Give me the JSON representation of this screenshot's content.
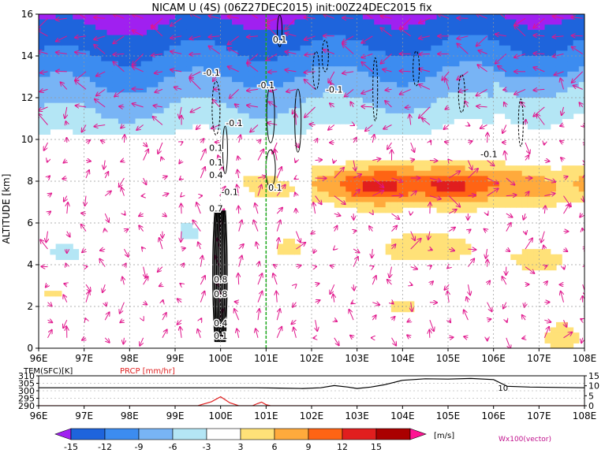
{
  "chart_data": {
    "type": "heatmap",
    "title": "NICAM U (4S) (06Z27DEC2015) init:00Z24DEC2015 fix",
    "main_panel": {
      "ylabel": "ALTITUDE [km]",
      "xlim": [
        96,
        108
      ],
      "ylim": [
        0,
        16
      ],
      "x_ticks": [
        96,
        97,
        98,
        99,
        100,
        101,
        102,
        103,
        104,
        105,
        106,
        107,
        108
      ],
      "x_tick_labels": [
        "96E",
        "97E",
        "98E",
        "99E",
        "100E",
        "101E",
        "102E",
        "103E",
        "104E",
        "105E",
        "106E",
        "107E",
        "108E"
      ],
      "y_ticks": [
        0,
        2,
        4,
        6,
        8,
        10,
        12,
        14,
        16
      ],
      "y_tick_labels": [
        "0",
        "2",
        "4",
        "6",
        "8",
        "10",
        "12",
        "14",
        "16"
      ],
      "grid": true,
      "marker_line_lon": 101,
      "contour_labels": [
        {
          "lon": 99.8,
          "alt": 13.2,
          "text": "-0.1"
        },
        {
          "lon": 101.3,
          "alt": 14.8,
          "text": "0.1"
        },
        {
          "lon": 101.0,
          "alt": 12.6,
          "text": "-0.1"
        },
        {
          "lon": 102.5,
          "alt": 12.4,
          "text": "-0.1"
        },
        {
          "lon": 100.3,
          "alt": 10.8,
          "text": "-0.1"
        },
        {
          "lon": 101.2,
          "alt": 7.7,
          "text": "0.1"
        },
        {
          "lon": 105.9,
          "alt": 9.3,
          "text": "-0.1"
        },
        {
          "lon": 99.9,
          "alt": 9.6,
          "text": "0.1"
        },
        {
          "lon": 99.9,
          "alt": 8.9,
          "text": "0.1"
        },
        {
          "lon": 99.9,
          "alt": 8.3,
          "text": "0.4"
        },
        {
          "lon": 100.2,
          "alt": 7.5,
          "text": "-0.1"
        },
        {
          "lon": 99.9,
          "alt": 6.7,
          "text": "0.7"
        },
        {
          "lon": 100.0,
          "alt": 3.3,
          "text": "0.8"
        },
        {
          "lon": 100.0,
          "alt": 2.6,
          "text": "0.8"
        },
        {
          "lon": 100.0,
          "alt": 1.2,
          "text": "0.4"
        },
        {
          "lon": 100.0,
          "alt": 0.6,
          "text": "0.1"
        }
      ],
      "u_wind_bands": [
        {
          "alt_range": [
            13.5,
            16
          ],
          "u": -15
        },
        {
          "alt_range": [
            11.5,
            13.5
          ],
          "u": -9
        },
        {
          "alt_range": [
            10.2,
            11.5
          ],
          "u": -3
        },
        {
          "alt_range": [
            6.5,
            9
          ],
          "u": 6,
          "lon_range": [
            102.5,
            108
          ]
        },
        {
          "alt_range": [
            7.2,
            8.2
          ],
          "u": 12,
          "lon_range": [
            103,
            106
          ]
        }
      ]
    },
    "bottom_panel": {
      "left_label": "TEM(SFC)[K]",
      "right_label": "PRCP [mm/hr]",
      "left_ticks": [
        310,
        305,
        300,
        295,
        290
      ],
      "right_ticks": [
        15,
        10,
        5,
        0
      ],
      "xlim": [
        96,
        108
      ],
      "x_tick_labels": [
        "96E",
        "97E",
        "98E",
        "99E",
        "100E",
        "101E",
        "102E",
        "103E",
        "104E",
        "105E",
        "106E",
        "107E",
        "108E"
      ],
      "inline_label": "10",
      "tem_series": [
        [
          96,
          302
        ],
        [
          97,
          302
        ],
        [
          98,
          302
        ],
        [
          99,
          302
        ],
        [
          99.8,
          302
        ],
        [
          100.2,
          302
        ],
        [
          100.8,
          302
        ],
        [
          101.3,
          301.8
        ],
        [
          101.8,
          301.5
        ],
        [
          102.2,
          302
        ],
        [
          102.5,
          303.5
        ],
        [
          102.8,
          302.5
        ],
        [
          103.0,
          301.5
        ],
        [
          103.3,
          302.5
        ],
        [
          103.6,
          304
        ],
        [
          104.0,
          307
        ],
        [
          104.5,
          308
        ],
        [
          105.0,
          307.8
        ],
        [
          105.5,
          308.2
        ],
        [
          106.0,
          307.5
        ],
        [
          106.3,
          303
        ],
        [
          106.8,
          302.5
        ],
        [
          107.5,
          302.2
        ],
        [
          108,
          302
        ]
      ],
      "prcp_series": [
        [
          96,
          0
        ],
        [
          99.5,
          0
        ],
        [
          99.8,
          2
        ],
        [
          100.0,
          4.5
        ],
        [
          100.2,
          1.5
        ],
        [
          100.4,
          0
        ],
        [
          100.7,
          0
        ],
        [
          100.8,
          1
        ],
        [
          100.9,
          1.8
        ],
        [
          101.0,
          0.5
        ],
        [
          101.1,
          0
        ],
        [
          108,
          0
        ]
      ]
    },
    "colorbar": {
      "labels": [
        "-15",
        "-12",
        "-9",
        "-6",
        "-3",
        "3",
        "6",
        "9",
        "12",
        "15"
      ],
      "colors": [
        "#a020f0",
        "#1e64dc",
        "#3c8cf0",
        "#78b4f5",
        "#b4e6f5",
        "#ffffff",
        "#ffe178",
        "#ffaa3c",
        "#ff6414",
        "#e11e1e",
        "#aa0000",
        "#ff1493"
      ],
      "unit": "[m/s]",
      "vector_label": "Wx100(vector)"
    }
  }
}
